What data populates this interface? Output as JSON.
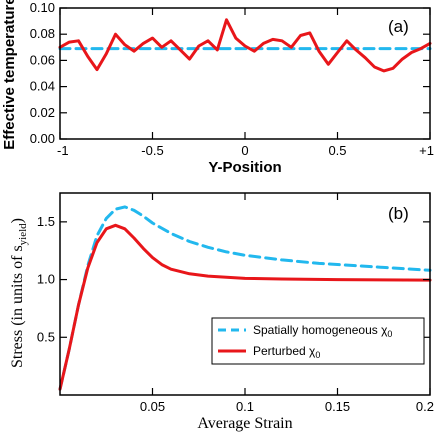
{
  "colors": {
    "homogeneous": "#22b8ee",
    "perturbed": "#e8161a",
    "axis": "#000000"
  },
  "chart_data": [
    {
      "type": "line",
      "panel_label": "(a)",
      "xlabel": "Y-Position",
      "ylabel": "Effective temperature",
      "xlim": [
        -1,
        1
      ],
      "ylim": [
        0,
        0.1
      ],
      "x_ticks": [
        -1,
        -0.5,
        0,
        0.5,
        1
      ],
      "x_tick_labels": [
        "-1",
        "-0.5",
        "0",
        "0.5",
        "+1"
      ],
      "y_ticks": [
        0,
        0.02,
        0.04,
        0.06,
        0.08,
        0.1
      ],
      "y_tick_labels": [
        "0.00",
        "0.02",
        "0.04",
        "0.06",
        "0.08",
        "0.10"
      ],
      "grid": false,
      "series": [
        {
          "style": "dashed",
          "color": "#22b8ee",
          "x": [
            -1,
            1
          ],
          "y": [
            0.069,
            0.069
          ]
        },
        {
          "style": "solid",
          "color": "#e8161a",
          "x": [
            -1.0,
            -0.95,
            -0.9,
            -0.85,
            -0.8,
            -0.75,
            -0.7,
            -0.65,
            -0.6,
            -0.55,
            -0.5,
            -0.45,
            -0.4,
            -0.35,
            -0.3,
            -0.25,
            -0.2,
            -0.15,
            -0.1,
            -0.05,
            0.0,
            0.05,
            0.1,
            0.15,
            0.2,
            0.25,
            0.3,
            0.35,
            0.4,
            0.45,
            0.5,
            0.55,
            0.6,
            0.65,
            0.7,
            0.75,
            0.8,
            0.85,
            0.9,
            0.95,
            1.0
          ],
          "y": [
            0.07,
            0.074,
            0.075,
            0.063,
            0.053,
            0.065,
            0.08,
            0.072,
            0.067,
            0.073,
            0.077,
            0.07,
            0.075,
            0.068,
            0.061,
            0.071,
            0.075,
            0.068,
            0.091,
            0.077,
            0.071,
            0.067,
            0.073,
            0.076,
            0.075,
            0.07,
            0.079,
            0.081,
            0.067,
            0.057,
            0.066,
            0.075,
            0.068,
            0.062,
            0.055,
            0.052,
            0.054,
            0.061,
            0.066,
            0.069,
            0.073
          ]
        }
      ]
    },
    {
      "type": "line",
      "panel_label": "(b)",
      "xlabel": "Average Strain",
      "ylabel": "Stress (in units of s",
      "ylabel_sub": "yield",
      "ylabel_end": ")",
      "xlim": [
        0,
        0.2
      ],
      "ylim": [
        0,
        1.75
      ],
      "x_ticks": [
        0.05,
        0.1,
        0.15,
        0.2
      ],
      "x_tick_labels": [
        "0.05",
        "0.1",
        "0.15",
        "0.2"
      ],
      "y_ticks": [
        0.5,
        1.0,
        1.5
      ],
      "y_tick_labels": [
        "0.5",
        "1.0",
        "1.5"
      ],
      "grid": false,
      "legend_position": "lower-right",
      "legend": [
        {
          "label": "Spatially homogeneous χ",
          "sub": "0",
          "style": "dashed",
          "color": "#22b8ee"
        },
        {
          "label": "Perturbed χ",
          "sub": "0",
          "style": "solid",
          "color": "#e8161a"
        }
      ],
      "series": [
        {
          "style": "dashed",
          "color": "#22b8ee",
          "x": [
            0.0,
            0.005,
            0.01,
            0.015,
            0.02,
            0.025,
            0.03,
            0.035,
            0.04,
            0.045,
            0.05,
            0.06,
            0.07,
            0.08,
            0.09,
            0.1,
            0.12,
            0.14,
            0.16,
            0.18,
            0.2
          ],
          "y": [
            0.05,
            0.4,
            0.78,
            1.12,
            1.38,
            1.53,
            1.61,
            1.63,
            1.6,
            1.55,
            1.49,
            1.4,
            1.33,
            1.28,
            1.24,
            1.21,
            1.17,
            1.14,
            1.12,
            1.1,
            1.08
          ]
        },
        {
          "style": "solid",
          "color": "#e8161a",
          "x": [
            0.0,
            0.005,
            0.01,
            0.015,
            0.02,
            0.025,
            0.03,
            0.035,
            0.04,
            0.045,
            0.05,
            0.055,
            0.06,
            0.07,
            0.08,
            0.09,
            0.1,
            0.12,
            0.15,
            0.2
          ],
          "y": [
            0.05,
            0.4,
            0.78,
            1.1,
            1.32,
            1.44,
            1.47,
            1.44,
            1.36,
            1.27,
            1.19,
            1.13,
            1.09,
            1.05,
            1.03,
            1.02,
            1.01,
            1.005,
            1.0,
            0.995
          ]
        }
      ]
    }
  ]
}
